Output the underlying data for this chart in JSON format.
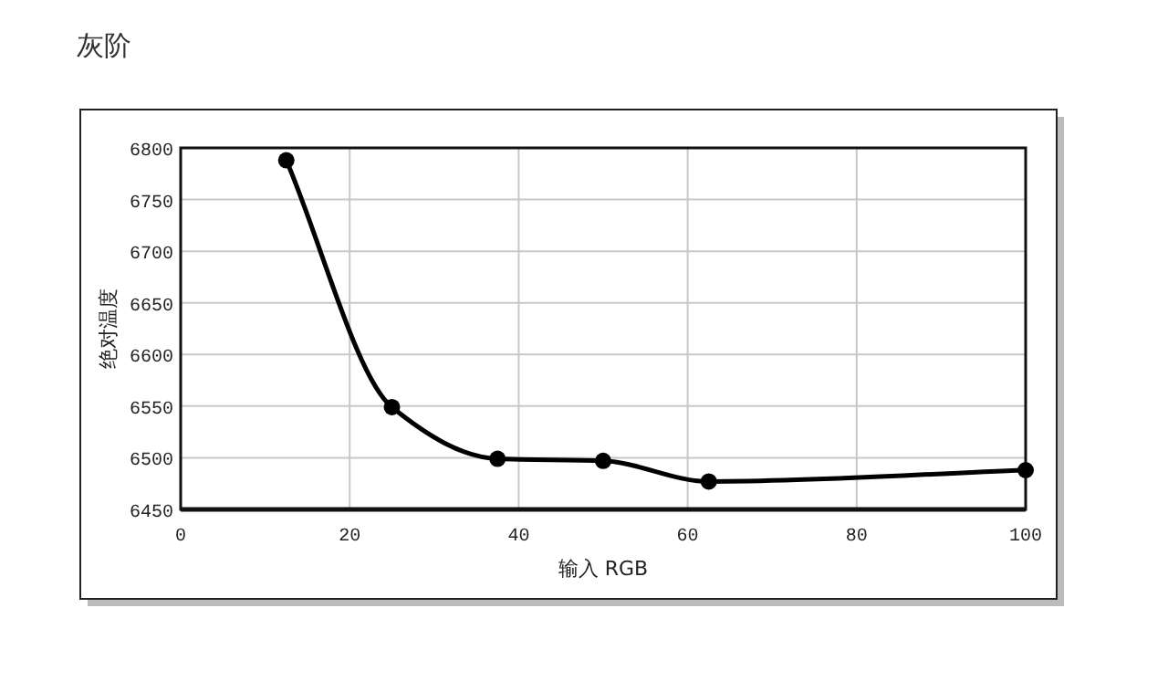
{
  "chart_data": {
    "type": "line",
    "title": "灰阶",
    "xlabel": "输入 RGB",
    "ylabel": "绝对温度",
    "x": [
      12.5,
      25,
      37.5,
      50,
      62.5,
      100
    ],
    "values": [
      6788,
      6549,
      6499,
      6497,
      6477,
      6488
    ],
    "color": "#000000",
    "marker": "circle",
    "grid": true,
    "xlim": [
      0,
      100
    ],
    "xticks": [
      0,
      20,
      40,
      60,
      80,
      100
    ],
    "ylim": [
      6450,
      6800
    ],
    "yticks": [
      6450,
      6500,
      6550,
      6600,
      6650,
      6700,
      6750,
      6800
    ]
  }
}
